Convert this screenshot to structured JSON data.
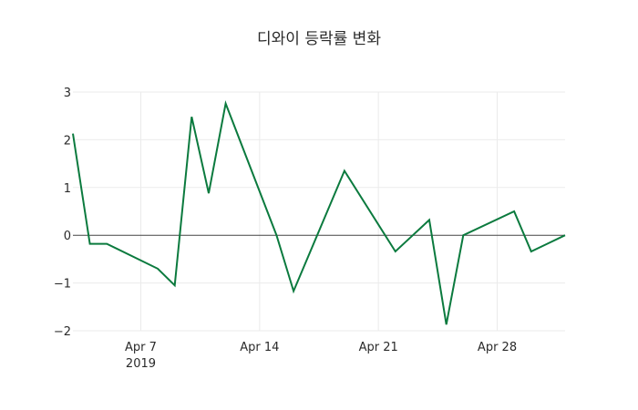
{
  "chart_data": {
    "type": "line",
    "title": "디와이 등락률 변화",
    "xlabel": "",
    "ylabel": "",
    "x": [
      "2019-04-03",
      "2019-04-04",
      "2019-04-05",
      "2019-04-08",
      "2019-04-09",
      "2019-04-10",
      "2019-04-11",
      "2019-04-12",
      "2019-04-15",
      "2019-04-16",
      "2019-04-17",
      "2019-04-18",
      "2019-04-19",
      "2019-04-22",
      "2019-04-23",
      "2019-04-24",
      "2019-04-25",
      "2019-04-26",
      "2019-04-29",
      "2019-04-30",
      "2019-05-01",
      "2019-05-02"
    ],
    "series": [
      {
        "name": "등락률",
        "color": "#0b7a3e",
        "values": [
          2.13,
          -0.18,
          -0.18,
          -0.7,
          -1.05,
          2.48,
          0.88,
          2.76,
          0.0,
          -1.17,
          -0.33,
          0.51,
          1.35,
          -0.34,
          -0.01,
          0.32,
          -1.87,
          0.0,
          0.5,
          -0.34,
          -0.17,
          0.0
        ]
      }
    ],
    "x_ticks": [
      {
        "date": "2019-04-07",
        "label": "Apr 7",
        "sublabel": "2019"
      },
      {
        "date": "2019-04-14",
        "label": "Apr 14",
        "sublabel": ""
      },
      {
        "date": "2019-04-21",
        "label": "Apr 21",
        "sublabel": ""
      },
      {
        "date": "2019-04-28",
        "label": "Apr 28",
        "sublabel": ""
      }
    ],
    "y_ticks": [
      3,
      2,
      1,
      0,
      -1,
      -2
    ],
    "y_tick_labels": [
      "3",
      "2",
      "1",
      "0",
      "−1",
      "−2"
    ],
    "xlim": [
      "2019-04-03",
      "2019-05-02"
    ],
    "ylim": [
      -2.0,
      3.0
    ],
    "grid": true,
    "zero_line": true,
    "legend": "none"
  }
}
